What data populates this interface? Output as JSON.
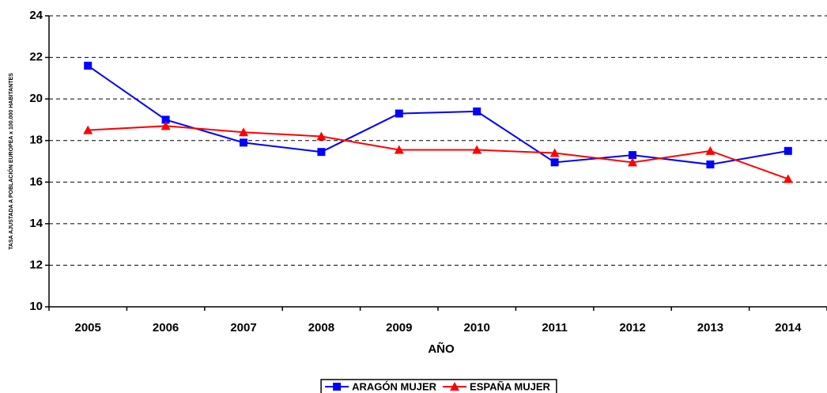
{
  "chart_data": {
    "type": "line",
    "y_label": "TASA AJUSTADA A POBLACIÓN EUROPEA x 100.000 HABITANTES",
    "x_label": "AÑO",
    "categories": [
      "2005",
      "2006",
      "2007",
      "2008",
      "2009",
      "2010",
      "2011",
      "2012",
      "2013",
      "2014"
    ],
    "series": [
      {
        "name": "ARAGÓN MUJER",
        "color": "#0000ff",
        "marker": "square",
        "values": [
          21.6,
          19.0,
          17.9,
          17.45,
          19.3,
          19.4,
          16.95,
          17.3,
          16.85,
          17.5
        ]
      },
      {
        "name": "ESPAÑA MUJER",
        "color": "#ff0000",
        "marker": "triangle",
        "values": [
          18.5,
          18.7,
          18.4,
          18.2,
          17.55,
          17.55,
          17.4,
          16.95,
          17.5,
          16.15
        ]
      }
    ],
    "ylim": [
      10,
      24
    ],
    "yticks": [
      10,
      12,
      14,
      16,
      18,
      20,
      22,
      24
    ],
    "grid": true,
    "legend": "bottom"
  }
}
